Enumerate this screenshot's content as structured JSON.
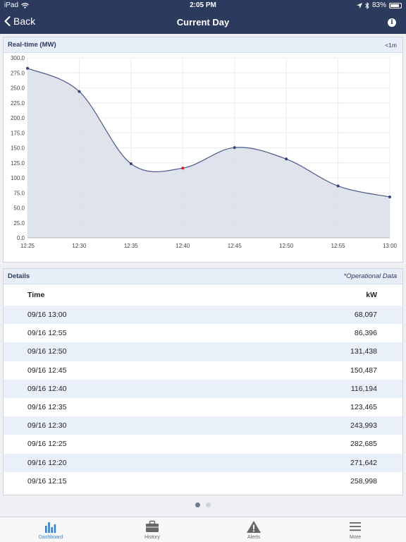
{
  "status_bar": {
    "carrier": "iPad",
    "time": "2:05 PM",
    "battery": "83%",
    "battery_level": 0.83
  },
  "nav": {
    "back_label": "Back",
    "title": "Current Day"
  },
  "chart_card": {
    "title": "Real-time (MW)",
    "interval": "<1m"
  },
  "chart_data": {
    "type": "area",
    "categories": [
      "12:25",
      "12:30",
      "12:35",
      "12:40",
      "12:45",
      "12:50",
      "12:55",
      "13:00"
    ],
    "values": [
      282.7,
      244.0,
      123.5,
      116.2,
      150.5,
      131.4,
      86.4,
      68.1
    ],
    "highlight_index": 3,
    "yticks": [
      "300.0",
      "275.0",
      "250.0",
      "225.0",
      "200.0",
      "175.0",
      "150.0",
      "125.0",
      "100.0",
      "75.0",
      "50.0",
      "25.0",
      "0.0"
    ],
    "ylim": [
      0,
      300
    ],
    "grid": true,
    "colors": {
      "line": "#4a5a8a",
      "fill": "#d9dee8",
      "point": "#33457a",
      "highlight": "#cc2222"
    }
  },
  "details": {
    "title": "Details",
    "note": "*Operational Data",
    "col_time": "Time",
    "col_kw": "kW",
    "rows": [
      {
        "time": "09/16 13:00",
        "kw": "68,097"
      },
      {
        "time": "09/16 12:55",
        "kw": "86,396"
      },
      {
        "time": "09/16 12:50",
        "kw": "131,438"
      },
      {
        "time": "09/16 12:45",
        "kw": "150,487"
      },
      {
        "time": "09/16 12:40",
        "kw": "116,194"
      },
      {
        "time": "09/16 12:35",
        "kw": "123,465"
      },
      {
        "time": "09/16 12:30",
        "kw": "243,993"
      },
      {
        "time": "09/16 12:25",
        "kw": "282,685"
      },
      {
        "time": "09/16 12:20",
        "kw": "271,642"
      },
      {
        "time": "09/16 12:15",
        "kw": "258,998"
      }
    ]
  },
  "pager": {
    "count": 2,
    "active": 0
  },
  "tabs": [
    {
      "label": "Dashboard",
      "icon": "bar-chart-icon",
      "active": true
    },
    {
      "label": "History",
      "icon": "briefcase-icon",
      "active": false
    },
    {
      "label": "Alerts",
      "icon": "warning-icon",
      "active": false
    },
    {
      "label": "More",
      "icon": "menu-icon",
      "active": false
    }
  ]
}
